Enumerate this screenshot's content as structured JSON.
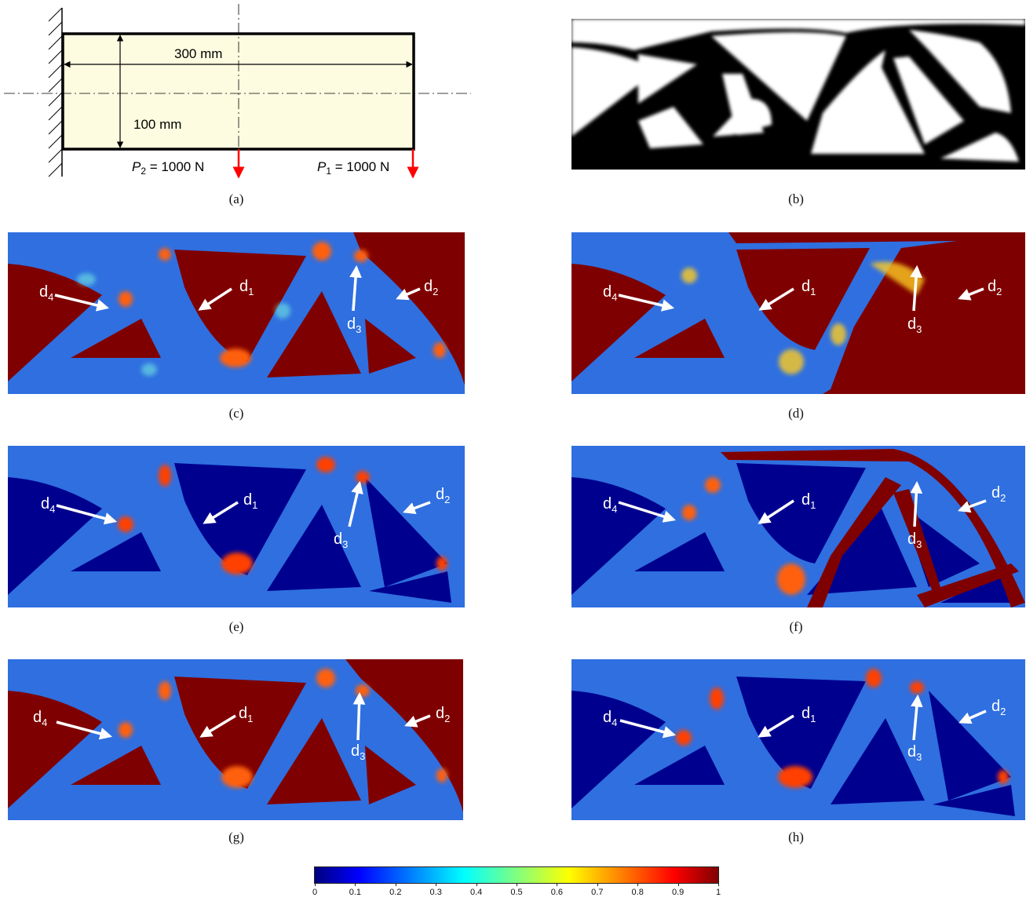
{
  "panel_a": {
    "width_label": "300 mm",
    "height_label": "100 mm",
    "p2_sym": "P",
    "p2_sub": "2",
    "p2_val": " = 1000 N",
    "p1_sym": "P",
    "p1_sub": "1",
    "p1_val": " = 1000 N"
  },
  "captions": [
    "(a)",
    "(b)",
    "(c)",
    "(d)",
    "(e)",
    "(f)",
    "(g)",
    "(h)"
  ],
  "labels": {
    "d1": {
      "base": "d",
      "sub": "1"
    },
    "d2": {
      "base": "d",
      "sub": "2"
    },
    "d3": {
      "base": "d",
      "sub": "3"
    },
    "d4": {
      "base": "d",
      "sub": "4"
    }
  },
  "colorbar": {
    "ticks": [
      "0",
      "0.1",
      "0.2",
      "0.3",
      "0.4",
      "0.5",
      "0.6",
      "0.7",
      "0.8",
      "0.9",
      "1"
    ],
    "colormap": [
      "#00007f",
      "#0000ff",
      "#0080ff",
      "#00ffff",
      "#80ff80",
      "#ffff00",
      "#ff8000",
      "#ff0000",
      "#800000"
    ]
  },
  "colors": {
    "beam_fill": "#fdfce0",
    "load_arrow": "#ff0000",
    "low": "#00008f",
    "high": "#7f0000",
    "mid": "#2f78e6"
  }
}
